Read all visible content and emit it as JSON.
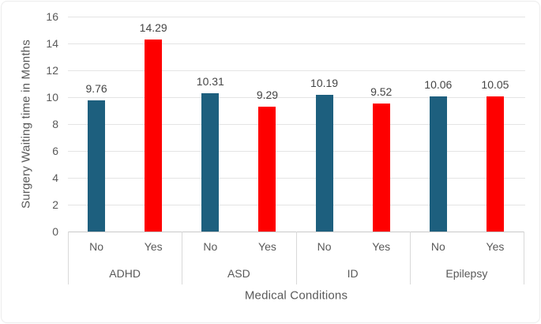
{
  "chart_data": {
    "type": "bar",
    "title": "",
    "xlabel": "Medical Conditions",
    "ylabel": "Surgery Waiting time in Months",
    "ylim": [
      0,
      16
    ],
    "ytick_step": 2,
    "grid": true,
    "legend_position": "none",
    "data_labels": true,
    "categories": [
      "ADHD",
      "ASD",
      "ID",
      "Epilepsy"
    ],
    "sub_categories": [
      "No",
      "Yes"
    ],
    "series": [
      {
        "name": "No",
        "color": "#1d5f7e",
        "values": [
          9.76,
          10.31,
          10.19,
          10.06
        ]
      },
      {
        "name": "Yes",
        "color": "#fe0000",
        "values": [
          14.29,
          9.29,
          9.52,
          10.05
        ]
      }
    ]
  },
  "colors": {
    "background": "#ffffff",
    "gridline": "#e4e4e4",
    "axis_line": "#c9c9c9",
    "divider": "#d9d9d9",
    "tick_text": "#595959",
    "data_label_text": "#454545",
    "series_no": "#1d5f7e",
    "series_yes": "#fe0000"
  }
}
